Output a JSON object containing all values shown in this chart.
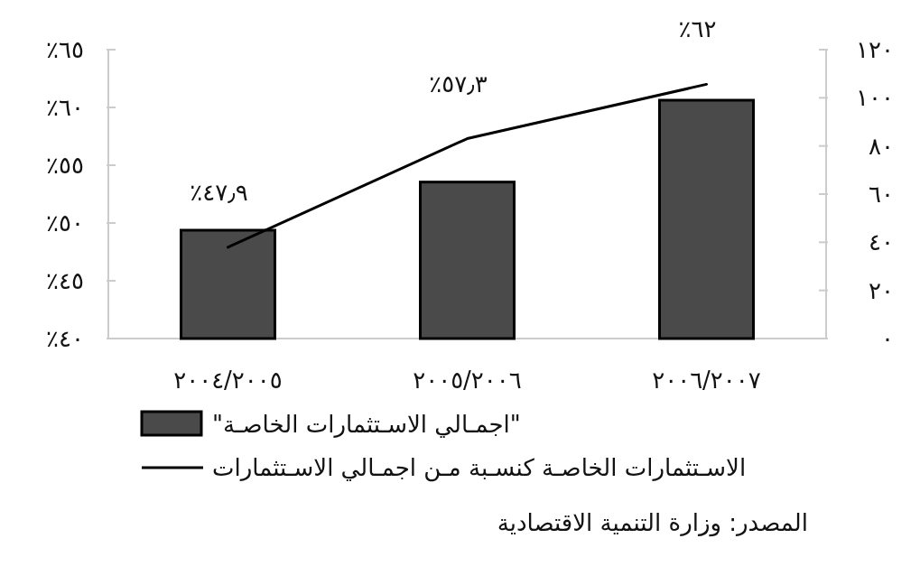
{
  "chart_data": {
    "type": "bar",
    "categories": [
      "٢٠٠٤/٢٠٠٥",
      "٢٠٠٥/٢٠٠٦",
      "٢٠٠٦/٢٠٠٧"
    ],
    "series": [
      {
        "name": "\"اجمـالي الاسـتثمارات الخاصـة\"",
        "axis": "y2",
        "color": "#4a4a4a",
        "values": [
          45,
          65,
          99
        ]
      },
      {
        "name": "الاسـتثمارات الخاصـة كنسـبة مـن اجمـالي الاسـتثمارات",
        "type": "line",
        "color": "#000000",
        "values": [
          47.9,
          57.3,
          62
        ],
        "value_labels": [
          "٪٤٧٫٩",
          "٪٥٧٫٣",
          "٪٦٢"
        ]
      }
    ],
    "ylim": [
      40,
      65
    ],
    "yticks": [
      {
        "value": 40,
        "label": "٪٤٠"
      },
      {
        "value": 45,
        "label": "٪٤٥"
      },
      {
        "value": 50,
        "label": "٪٥٠"
      },
      {
        "value": 55,
        "label": "٪٥٥"
      },
      {
        "value": 60,
        "label": "٪٦٠"
      },
      {
        "value": 65,
        "label": "٪٦٥"
      }
    ],
    "y2lim": [
      0,
      120
    ],
    "y2ticks": [
      {
        "value": 0,
        "label": "٠"
      },
      {
        "value": 20,
        "label": "٢٠"
      },
      {
        "value": 40,
        "label": "٤٠"
      },
      {
        "value": 60,
        "label": "٦٠"
      },
      {
        "value": 80,
        "label": "٨٠"
      },
      {
        "value": 100,
        "label": "١٠٠"
      },
      {
        "value": 120,
        "label": "١٢٠"
      }
    ],
    "legend": "bottom",
    "annotations": [
      "المصدر: وزارة التنمية الاقتصادية"
    ]
  }
}
